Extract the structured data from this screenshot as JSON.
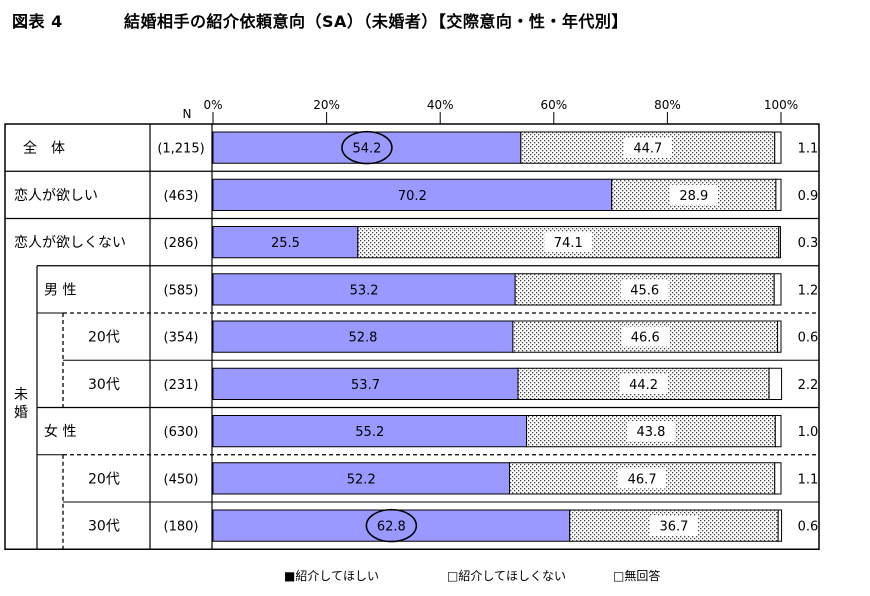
{
  "title": {
    "figure_number": "図表 4",
    "text": "結婚相手の紹介依頼意向（SA）（未婚者）【交際意向・性・年代別】"
  },
  "chart_data": {
    "type": "bar",
    "stacked": true,
    "orientation": "horizontal",
    "n_header": "N",
    "x_axis": {
      "ticks": [
        "0%",
        "20%",
        "40%",
        "60%",
        "80%",
        "100%"
      ],
      "range": [
        0,
        100
      ]
    },
    "rows": [
      {
        "group": "",
        "label": "全　体",
        "n": "(1,215)",
        "values": [
          54.2,
          44.7,
          1.1
        ],
        "circled": true
      },
      {
        "group": "",
        "label": "恋人が欲しい",
        "n": "(463)",
        "values": [
          70.2,
          28.9,
          0.9
        ]
      },
      {
        "group": "",
        "label": "恋人が欲しくない",
        "n": "(286)",
        "values": [
          25.5,
          74.1,
          0.3
        ]
      },
      {
        "group": "未婚",
        "label": "男 性",
        "n": "(585)",
        "values": [
          53.2,
          45.6,
          1.2
        ]
      },
      {
        "group": "未婚",
        "label": "20代",
        "n": "(354)",
        "values": [
          52.8,
          46.6,
          0.6
        ]
      },
      {
        "group": "未婚",
        "label": "30代",
        "n": "(231)",
        "values": [
          53.7,
          44.2,
          2.2
        ]
      },
      {
        "group": "未婚",
        "label": "女 性",
        "n": "(630)",
        "values": [
          55.2,
          43.8,
          1.0
        ]
      },
      {
        "group": "未婚",
        "label": "20代",
        "n": "(450)",
        "values": [
          52.2,
          46.7,
          1.1
        ]
      },
      {
        "group": "未婚",
        "label": "30代",
        "n": "(180)",
        "values": [
          62.8,
          36.7,
          0.6
        ],
        "circled": true
      }
    ],
    "value_labels": [
      [
        "54.2",
        "44.7",
        "1.1"
      ],
      [
        "70.2",
        "28.9",
        "0.9"
      ],
      [
        "25.5",
        "74.1",
        "0.3"
      ],
      [
        "53.2",
        "45.6",
        "1.2"
      ],
      [
        "52.8",
        "46.6",
        "0.6"
      ],
      [
        "53.7",
        "44.2",
        "2.2"
      ],
      [
        "55.2",
        "43.8",
        "1.0"
      ],
      [
        "52.2",
        "46.7",
        "1.1"
      ],
      [
        "62.8",
        "36.7",
        "0.6"
      ]
    ],
    "group_label": "未婚",
    "series": [
      {
        "name": "紹介してほしい",
        "color": "#9999ff",
        "pattern": "solid"
      },
      {
        "name": "紹介してほしくない",
        "color": "#ffffff",
        "pattern": "dots"
      },
      {
        "name": "無回答",
        "color": "#ffffff",
        "pattern": "solid"
      }
    ],
    "legend": {
      "position": "bottom",
      "items": [
        "■紹介してほしい",
        "□紹介してほしくない",
        "□無回答"
      ]
    }
  }
}
